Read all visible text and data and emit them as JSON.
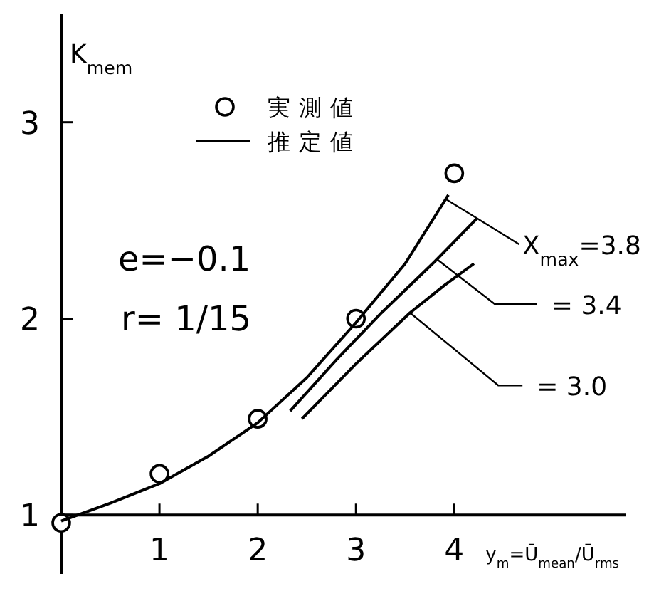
{
  "chart_data": {
    "type": "line",
    "ylabel": "K$_{mem}$",
    "xlabel": "y$_{m}$=Ū$_{mean}$/Ū$_{rms}$",
    "xlim": [
      0,
      5.75
    ],
    "ylim": [
      0.7,
      3.55
    ],
    "xticks": [
      1,
      2,
      3,
      4
    ],
    "yticks": [
      1,
      2,
      3
    ],
    "legend": "top",
    "series": [
      {
        "name": "実測値",
        "type": "scatter",
        "marker": "circle",
        "color": "#000000",
        "x": [
          0,
          1,
          2,
          3,
          4
        ],
        "values": [
          0.96,
          1.21,
          1.49,
          2.0,
          2.74
        ]
      },
      {
        "name": "推定値",
        "color": "#000000",
        "x": [
          0,
          0.5,
          1,
          1.5,
          2,
          2.5,
          3,
          3.5,
          3.94
        ],
        "values": [
          0.97,
          1.06,
          1.16,
          1.3,
          1.47,
          1.7,
          1.98,
          2.28,
          2.63
        ]
      },
      {
        "color": "#000000",
        "x": [
          2.33,
          2.8,
          3.26,
          3.8,
          4.23
        ],
        "values": [
          1.53,
          1.79,
          2.03,
          2.29,
          2.51
        ]
      },
      {
        "color": "#000000",
        "x": [
          2.45,
          3.0,
          3.55,
          3.9,
          4.2
        ],
        "values": [
          1.49,
          1.77,
          2.03,
          2.17,
          2.28
        ]
      }
    ],
    "annotations": [
      "e=−0.1",
      "r= 1/15",
      {
        "text": "X$_{max}$=3.8",
        "x": 3.91,
        "y": 2.61
      },
      {
        "text": "= 3.4",
        "x": 3.83,
        "y": 2.3
      },
      {
        "text": "= 3.0",
        "x": 3.55,
        "y": 2.03
      }
    ]
  }
}
